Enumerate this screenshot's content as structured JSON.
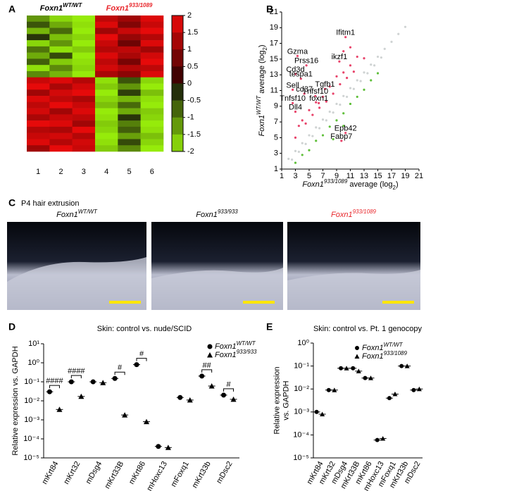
{
  "chart_data": [
    {
      "type": "heatmap",
      "panel": "A",
      "groups": [
        {
          "label": [
            {
              "text": "Foxn1",
              "style": "i"
            },
            {
              "text": "WT/WT",
              "style": "sup"
            }
          ],
          "color": "#000000"
        },
        {
          "label": [
            {
              "text": "Foxn1",
              "style": "i"
            },
            {
              "text": "933/1089",
              "style": "sup"
            }
          ],
          "color": "#e8262b"
        }
      ],
      "columns": [
        "1",
        "2",
        "3",
        "4",
        "5",
        "6"
      ],
      "rows": [
        [
          -1.2,
          -1.8,
          -2,
          1.5,
          1.2,
          1.8
        ],
        [
          -0.6,
          -1.4,
          -1.9,
          1.8,
          0.9,
          1.6
        ],
        [
          -1.5,
          -0.8,
          -2,
          1.2,
          1.6,
          1.9
        ],
        [
          -0.3,
          -1.6,
          -1.8,
          1.9,
          1.1,
          1.4
        ],
        [
          -1.8,
          -1.2,
          -2,
          1.6,
          0.7,
          1.8
        ],
        [
          -0.9,
          -1.9,
          -1.7,
          1.4,
          1.5,
          1.2
        ],
        [
          -1.4,
          -0.5,
          -2,
          1.8,
          1.3,
          1.7
        ],
        [
          -0.7,
          -1.7,
          -1.9,
          1.5,
          0.8,
          1.9
        ],
        [
          -1.9,
          -1.1,
          -1.8,
          1.7,
          1.4,
          1.5
        ],
        [
          -1.1,
          -1.5,
          -2,
          1.3,
          1.0,
          1.8
        ],
        [
          1.6,
          1.8,
          1.4,
          -1.9,
          -0.6,
          -1.8
        ],
        [
          1.9,
          1.3,
          1.7,
          -1.7,
          -1.2,
          -2
        ],
        [
          1.2,
          1.7,
          1.9,
          -2,
          -0.4,
          -1.6
        ],
        [
          1.8,
          1.5,
          1.3,
          -1.8,
          -1.5,
          -1.9
        ],
        [
          1.5,
          1.9,
          1.6,
          -1.6,
          -0.8,
          -2
        ],
        [
          1.7,
          1.2,
          1.8,
          -2,
          -1.4,
          -1.7
        ],
        [
          1.3,
          1.6,
          1.5,
          -1.9,
          -0.3,
          -1.8
        ],
        [
          1.9,
          1.8,
          1.2,
          -1.7,
          -1.0,
          -2
        ],
        [
          1.4,
          1.3,
          1.9,
          -1.8,
          -0.7,
          -1.9
        ],
        [
          1.6,
          1.7,
          1.4,
          -2,
          -1.3,
          -1.6
        ],
        [
          1.8,
          1.4,
          1.7,
          -1.9,
          -0.5,
          -1.8
        ],
        [
          1.2,
          1.9,
          1.6,
          -1.7,
          -1.1,
          -2
        ]
      ],
      "colorbar": {
        "lim": [
          -2,
          2
        ],
        "ticks": [
          2,
          1.5,
          1,
          0.5,
          0,
          -0.5,
          -1,
          -1.5,
          -2
        ]
      }
    },
    {
      "type": "scatter",
      "panel": "B",
      "x_label": [
        {
          "text": "Foxn1",
          "style": "i"
        },
        {
          "text": "933/1089",
          "style": "sup"
        },
        {
          "text": " average (log"
        },
        {
          "text": "2",
          "style": "sub"
        },
        {
          "text": ")"
        }
      ],
      "y_label": [
        {
          "text": "Foxn1",
          "style": "i"
        },
        {
          "text": "WT/WT",
          "style": "sup"
        },
        {
          "text": " average (log"
        },
        {
          "text": "2",
          "style": "sub"
        },
        {
          "text": ")"
        }
      ],
      "xlim": [
        1,
        21
      ],
      "ylim": [
        1,
        21
      ],
      "xticks": [
        1,
        3,
        5,
        7,
        9,
        11,
        13,
        15,
        17,
        19,
        21
      ],
      "yticks": [
        1,
        3,
        5,
        7,
        9,
        11,
        13,
        15,
        17,
        19,
        21
      ],
      "series": [
        {
          "color": "#cfd3d3",
          "x": [
            2,
            2.5,
            3,
            3.5,
            4,
            4.5,
            5,
            5.5,
            6,
            6.5,
            7,
            7.5,
            8,
            8.5,
            9,
            9.5,
            10,
            10.5,
            11,
            11.5,
            12,
            12.5,
            13,
            13.5,
            14,
            14.5,
            15,
            15.5,
            16,
            17,
            18,
            19
          ],
          "y": [
            2.3,
            2.2,
            3.3,
            3.2,
            4.3,
            4.2,
            5.3,
            5.2,
            6.3,
            6.2,
            7.3,
            7.2,
            8.3,
            8.2,
            9.3,
            9.2,
            10.3,
            10.2,
            11.3,
            11.2,
            12.3,
            12.2,
            13.3,
            13.2,
            14.3,
            14.2,
            15.3,
            15.2,
            16.3,
            17.2,
            18.2,
            19.1
          ]
        },
        {
          "color": "#e8436a",
          "x": [
            3,
            3.5,
            4,
            4.5,
            5,
            5.5,
            6,
            6.5,
            7,
            7.5,
            8,
            8.5,
            9,
            9.5,
            10,
            10.5,
            11,
            11.5,
            12,
            13,
            10,
            11
          ],
          "y": [
            5,
            6.5,
            7.2,
            6.8,
            8.5,
            7.9,
            9.5,
            8.8,
            10.2,
            9.6,
            11.5,
            10.6,
            12.8,
            11.8,
            13.3,
            12.6,
            14.2,
            13.4,
            15.3,
            15.1,
            16,
            16.5
          ]
        },
        {
          "color": "#5fbf3a",
          "x": [
            3,
            4,
            5,
            6,
            7,
            8,
            9,
            10,
            11,
            12,
            13,
            14,
            15,
            8.5,
            10
          ],
          "y": [
            1.8,
            2.8,
            3.4,
            4.6,
            5.3,
            6.4,
            7.2,
            8.1,
            9.3,
            10.2,
            11.1,
            12.3,
            13.2,
            4.8,
            6.5
          ]
        }
      ],
      "genes": {
        "names": [
          "Ifitm1",
          "Gzma",
          "ikzf1",
          "Prss16",
          "Cd3d",
          "tespa1",
          "Tgfb1",
          "Sell",
          "cd37",
          "Tnfsf10",
          "Tnfsf10",
          "foxn1",
          "Dll4",
          "Epb42",
          "Fabp7"
        ],
        "x": [
          10.3,
          3.3,
          9.4,
          4.6,
          3.0,
          3.8,
          7.3,
          2.6,
          4.3,
          5.9,
          2.6,
          6.4,
          3.0,
          10.3,
          9.7
        ],
        "y": [
          17.8,
          15.4,
          14.7,
          14.2,
          13.1,
          12.5,
          11.2,
          11.1,
          10.6,
          10.3,
          9.4,
          9.4,
          8.3,
          5.6,
          4.6
        ]
      }
    },
    {
      "type": "dotplot",
      "panel": "D",
      "title": "Skin: control vs. nude/SCID",
      "y_label": [
        "Relative expression vs. GAPDH"
      ],
      "categories": [
        "mKrt84",
        "mKrt32",
        "mDsg4",
        "mKrt33B",
        "mKrt86",
        "mHoxc13",
        "mFoxq1",
        "mKrt33b",
        "mDsc2"
      ],
      "ylim": [
        1e-05,
        10
      ],
      "log": true,
      "yticks": [
        {
          "value": 10,
          "label": "10¹"
        },
        {
          "value": 1,
          "label": "10⁰"
        },
        {
          "value": 0.1,
          "label": "10⁻¹"
        },
        {
          "value": 0.01,
          "label": "10⁻²"
        },
        {
          "value": 0.001,
          "label": "10⁻³"
        },
        {
          "value": 0.0001,
          "label": "10⁻⁴"
        },
        {
          "value": 1e-05,
          "label": "10⁻⁵"
        }
      ],
      "series": [
        {
          "name": [
            {
              "text": "Foxn1",
              "style": "i"
            },
            {
              "text": "WT/WT",
              "style": "sup"
            }
          ],
          "marker": "circle",
          "color": "#000000",
          "values": [
            0.03,
            0.1,
            0.1,
            0.15,
            0.8,
            4e-05,
            0.015,
            0.2,
            0.02
          ]
        },
        {
          "name": [
            {
              "text": "Foxn1",
              "style": "i"
            },
            {
              "text": "933/933",
              "style": "sup"
            }
          ],
          "marker": "triangle",
          "color": "#000000",
          "values": [
            0.0035,
            0.017,
            0.09,
            0.0018,
            0.0008,
            3.5e-05,
            0.011,
            0.06,
            0.012
          ]
        }
      ],
      "significance": [
        "####",
        "####",
        null,
        "#",
        "#",
        null,
        null,
        "##",
        "#"
      ]
    },
    {
      "type": "dotplot",
      "panel": "E",
      "title": "Skin: control vs. Pt. 1 genocopy",
      "y_label": [
        "Relative expression",
        "vs. GAPDH"
      ],
      "categories": [
        "mKrt84",
        "mKrt32",
        "mDsg4",
        "mKrt33B",
        "mKrt86",
        "mHoxc13",
        "mFoxq1",
        "mKrt33b",
        "mDsc2"
      ],
      "ylim": [
        1e-05,
        1
      ],
      "log": true,
      "yticks": [
        {
          "value": 1,
          "label": "10⁰"
        },
        {
          "value": 0.1,
          "label": "10⁻¹"
        },
        {
          "value": 0.01,
          "label": "10⁻²"
        },
        {
          "value": 0.001,
          "label": "10⁻³"
        },
        {
          "value": 0.0001,
          "label": "10⁻⁴"
        },
        {
          "value": 1e-05,
          "label": "10⁻⁵"
        }
      ],
      "series": [
        {
          "name": [
            {
              "text": "Foxn1",
              "style": "i"
            },
            {
              "text": "WT/WT",
              "style": "sup"
            }
          ],
          "marker": "circle",
          "color": "#000000",
          "values": [
            0.001,
            0.009,
            0.08,
            0.08,
            0.03,
            6e-05,
            0.004,
            0.1,
            0.009
          ]
        },
        {
          "name": [
            {
              "text": "Foxn1",
              "style": "i"
            },
            {
              "text": "933/1089",
              "style": "sup"
            }
          ],
          "marker": "triangle",
          "color": "#000000",
          "values": [
            0.0008,
            0.009,
            0.08,
            0.06,
            0.03,
            7e-05,
            0.006,
            0.1,
            0.01
          ]
        }
      ]
    }
  ],
  "panel_c": {
    "letter": "C",
    "title": "P4 hair extrusion",
    "images": [
      {
        "label": [
          {
            "text": "Foxn1",
            "style": "i"
          },
          {
            "text": "WT/WT",
            "style": "sup"
          }
        ],
        "color": "#000000"
      },
      {
        "label": [
          {
            "text": "Foxn1",
            "style": "i"
          },
          {
            "text": "933/933",
            "style": "sup"
          }
        ],
        "color": "#000000"
      },
      {
        "label": [
          {
            "text": "Foxn1",
            "style": "i"
          },
          {
            "text": "933/1089",
            "style": "sup"
          }
        ],
        "color": "#e8262b"
      }
    ]
  }
}
